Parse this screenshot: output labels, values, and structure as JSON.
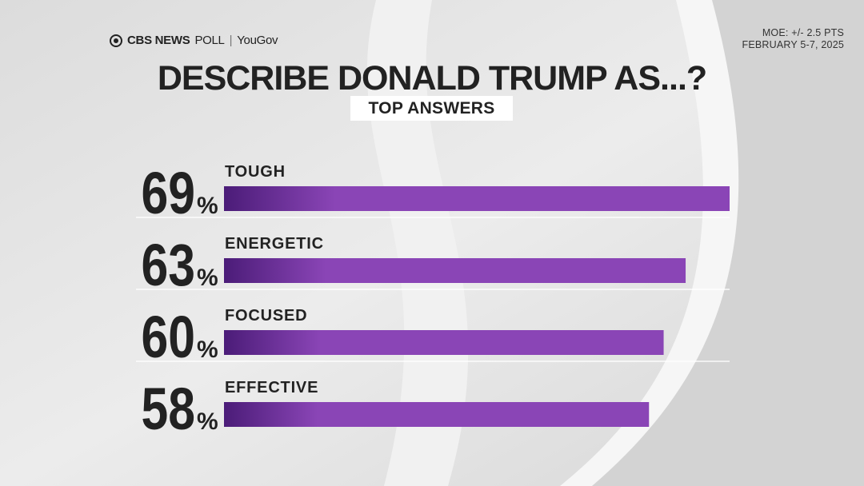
{
  "header": {
    "brand_primary": "CBS NEWS",
    "brand_secondary": "POLL",
    "brand_partner": "YouGov",
    "moe": "MOE: +/- 2.5 PTS",
    "dates": "FEBRUARY 5-7, 2025"
  },
  "title": "DESCRIBE DONALD TRUMP AS...?",
  "subtitle": "TOP ANSWERS",
  "chart_data": {
    "type": "bar",
    "orientation": "horizontal",
    "categories": [
      "TOUGH",
      "ENERGETIC",
      "FOCUSED",
      "EFFECTIVE"
    ],
    "values": [
      69,
      63,
      60,
      58
    ],
    "value_suffix": "%",
    "xlim": [
      0,
      69
    ],
    "grid": false,
    "legend": "none",
    "bar_color": "#8a45b6",
    "bar_color_dark": "#4b1c78"
  }
}
